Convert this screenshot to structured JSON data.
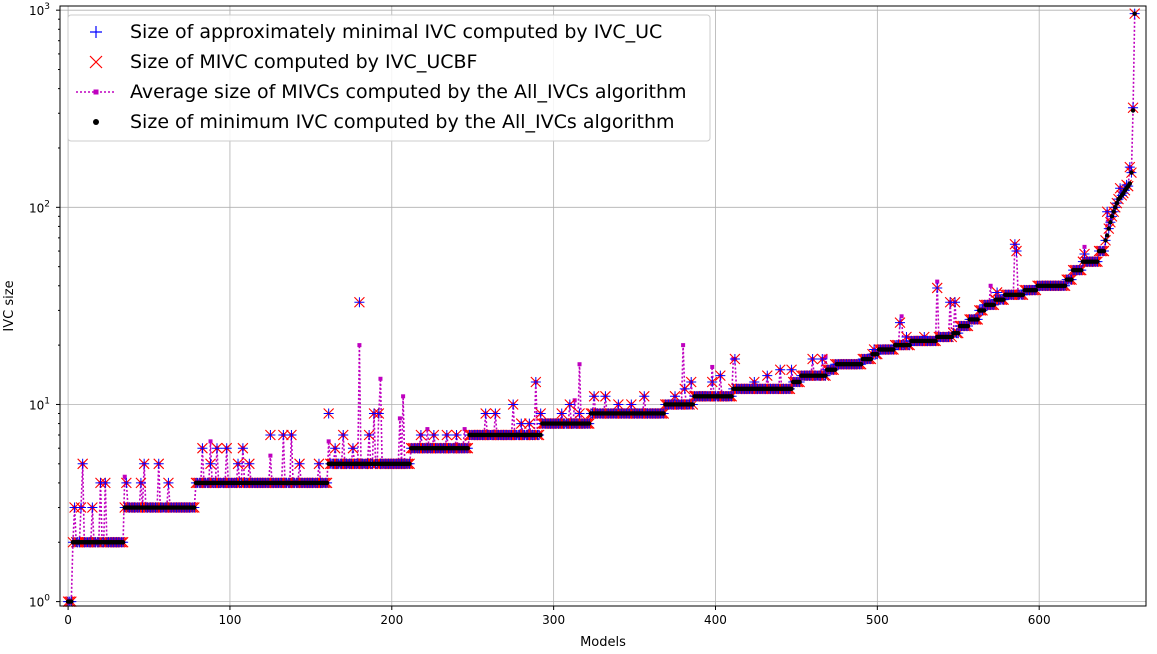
{
  "chart_data": {
    "type": "scatter",
    "xlabel": "Models",
    "ylabel": "IVC size",
    "xlim": [
      -5,
      666
    ],
    "ylim": [
      0.95,
      1050
    ],
    "yscale": "log",
    "grid": true,
    "legend_position": "top-left",
    "x_ticks": [
      "0",
      "100",
      "200",
      "300",
      "400",
      "500",
      "600"
    ],
    "y_ticks": [
      {
        "base": "10",
        "exp": "0"
      },
      {
        "base": "10",
        "exp": "1"
      },
      {
        "base": "10",
        "exp": "2"
      },
      {
        "base": "10",
        "exp": "3"
      }
    ],
    "n_models": 660,
    "series": [
      {
        "name": "Size of approximately minimal IVC computed by IVC_UC",
        "color": "#0000ff",
        "marker": "plus"
      },
      {
        "name": "Size of MIVC computed by IVC_UCBF",
        "color": "#ff0000",
        "marker": "x"
      },
      {
        "name": "Average size of MIVCs computed by the All_IVCs algorithm",
        "color": "#bf00bf",
        "marker": "square-dotted-line"
      },
      {
        "name": "Size of minimum IVC computed by the All_IVCs algorithm",
        "color": "#000000",
        "marker": "dot"
      }
    ],
    "min_ivc_steps": [
      {
        "from": 0,
        "to": 2,
        "value": 1
      },
      {
        "from": 3,
        "to": 34,
        "value": 2
      },
      {
        "from": 35,
        "to": 78,
        "value": 3
      },
      {
        "from": 79,
        "to": 160,
        "value": 4
      },
      {
        "from": 161,
        "to": 211,
        "value": 5
      },
      {
        "from": 212,
        "to": 247,
        "value": 6
      },
      {
        "from": 248,
        "to": 292,
        "value": 7
      },
      {
        "from": 293,
        "to": 322,
        "value": 8
      },
      {
        "from": 323,
        "to": 368,
        "value": 9
      },
      {
        "from": 369,
        "to": 386,
        "value": 10
      },
      {
        "from": 387,
        "to": 410,
        "value": 11
      },
      {
        "from": 411,
        "to": 447,
        "value": 12
      },
      {
        "from": 448,
        "to": 452,
        "value": 13
      },
      {
        "from": 453,
        "to": 468,
        "value": 14
      },
      {
        "from": 469,
        "to": 474,
        "value": 15
      },
      {
        "from": 475,
        "to": 490,
        "value": 16
      },
      {
        "from": 491,
        "to": 496,
        "value": 17
      },
      {
        "from": 497,
        "to": 500,
        "value": 18
      },
      {
        "from": 501,
        "to": 510,
        "value": 19
      },
      {
        "from": 511,
        "to": 520,
        "value": 20
      },
      {
        "from": 521,
        "to": 536,
        "value": 21
      },
      {
        "from": 537,
        "to": 546,
        "value": 22
      },
      {
        "from": 547,
        "to": 550,
        "value": 23
      },
      {
        "from": 551,
        "to": 556,
        "value": 25
      },
      {
        "from": 557,
        "to": 562,
        "value": 27
      },
      {
        "from": 563,
        "to": 566,
        "value": 30
      },
      {
        "from": 567,
        "to": 572,
        "value": 32
      },
      {
        "from": 573,
        "to": 578,
        "value": 34
      },
      {
        "from": 579,
        "to": 590,
        "value": 36
      },
      {
        "from": 591,
        "to": 598,
        "value": 38
      },
      {
        "from": 599,
        "to": 616,
        "value": 40
      },
      {
        "from": 617,
        "to": 620,
        "value": 43
      },
      {
        "from": 621,
        "to": 626,
        "value": 48
      },
      {
        "from": 627,
        "to": 636,
        "value": 53
      },
      {
        "from": 637,
        "to": 640,
        "value": 60
      }
    ],
    "min_ivc_tail": [
      {
        "x": 641,
        "y": 68
      },
      {
        "x": 642,
        "y": 72
      },
      {
        "x": 643,
        "y": 78
      },
      {
        "x": 644,
        "y": 84
      },
      {
        "x": 645,
        "y": 90
      },
      {
        "x": 646,
        "y": 95
      },
      {
        "x": 647,
        "y": 100
      },
      {
        "x": 648,
        "y": 105
      },
      {
        "x": 649,
        "y": 110
      },
      {
        "x": 650,
        "y": 112
      },
      {
        "x": 651,
        "y": 115
      },
      {
        "x": 652,
        "y": 118
      },
      {
        "x": 653,
        "y": 122
      },
      {
        "x": 654,
        "y": 125
      },
      {
        "x": 655,
        "y": 128
      },
      {
        "x": 656,
        "y": 132
      },
      {
        "x": 657,
        "y": 150
      },
      {
        "x": 658,
        "y": 310
      },
      {
        "x": 659,
        "y": 960
      }
    ],
    "mivc_outliers": [
      {
        "x": 1,
        "y": 1
      },
      {
        "x": 2,
        "y": 1
      },
      {
        "x": 4,
        "y": 3
      },
      {
        "x": 8,
        "y": 3
      },
      {
        "x": 9,
        "y": 5
      },
      {
        "x": 15,
        "y": 3
      },
      {
        "x": 20,
        "y": 4
      },
      {
        "x": 23,
        "y": 4
      },
      {
        "x": 36,
        "y": 4
      },
      {
        "x": 45,
        "y": 4
      },
      {
        "x": 47,
        "y": 5
      },
      {
        "x": 56,
        "y": 5
      },
      {
        "x": 62,
        "y": 4
      },
      {
        "x": 83,
        "y": 6
      },
      {
        "x": 88,
        "y": 5
      },
      {
        "x": 92,
        "y": 6
      },
      {
        "x": 98,
        "y": 6
      },
      {
        "x": 105,
        "y": 5
      },
      {
        "x": 108,
        "y": 6
      },
      {
        "x": 112,
        "y": 5
      },
      {
        "x": 125,
        "y": 7
      },
      {
        "x": 133,
        "y": 7
      },
      {
        "x": 138,
        "y": 7
      },
      {
        "x": 143,
        "y": 5
      },
      {
        "x": 155,
        "y": 5
      },
      {
        "x": 161,
        "y": 9
      },
      {
        "x": 165,
        "y": 6
      },
      {
        "x": 170,
        "y": 7
      },
      {
        "x": 176,
        "y": 6
      },
      {
        "x": 180,
        "y": 33
      },
      {
        "x": 186,
        "y": 7
      },
      {
        "x": 189,
        "y": 9
      },
      {
        "x": 192,
        "y": 9
      },
      {
        "x": 218,
        "y": 7
      },
      {
        "x": 226,
        "y": 7
      },
      {
        "x": 234,
        "y": 7
      },
      {
        "x": 240,
        "y": 7
      },
      {
        "x": 258,
        "y": 9
      },
      {
        "x": 264,
        "y": 9
      },
      {
        "x": 275,
        "y": 10
      },
      {
        "x": 280,
        "y": 8
      },
      {
        "x": 285,
        "y": 8
      },
      {
        "x": 289,
        "y": 13
      },
      {
        "x": 292,
        "y": 9
      },
      {
        "x": 305,
        "y": 9
      },
      {
        "x": 310,
        "y": 10
      },
      {
        "x": 316,
        "y": 9
      },
      {
        "x": 325,
        "y": 11
      },
      {
        "x": 332,
        "y": 11
      },
      {
        "x": 340,
        "y": 10
      },
      {
        "x": 348,
        "y": 10
      },
      {
        "x": 356,
        "y": 11
      },
      {
        "x": 375,
        "y": 11
      },
      {
        "x": 381,
        "y": 12
      },
      {
        "x": 385,
        "y": 13
      },
      {
        "x": 398,
        "y": 13
      },
      {
        "x": 403,
        "y": 14
      },
      {
        "x": 412,
        "y": 17
      },
      {
        "x": 424,
        "y": 13
      },
      {
        "x": 432,
        "y": 14
      },
      {
        "x": 440,
        "y": 15
      },
      {
        "x": 447,
        "y": 15
      },
      {
        "x": 460,
        "y": 17
      },
      {
        "x": 466,
        "y": 17
      },
      {
        "x": 474,
        "y": 16
      },
      {
        "x": 498,
        "y": 19
      },
      {
        "x": 514,
        "y": 26
      },
      {
        "x": 518,
        "y": 22
      },
      {
        "x": 529,
        "y": 22
      },
      {
        "x": 537,
        "y": 39
      },
      {
        "x": 545,
        "y": 33
      },
      {
        "x": 548,
        "y": 33
      },
      {
        "x": 566,
        "y": 32
      },
      {
        "x": 574,
        "y": 37
      },
      {
        "x": 585,
        "y": 65
      },
      {
        "x": 586,
        "y": 60
      },
      {
        "x": 628,
        "y": 58
      },
      {
        "x": 642,
        "y": 95
      },
      {
        "x": 650,
        "y": 125
      },
      {
        "x": 654,
        "y": 130
      },
      {
        "x": 656,
        "y": 160
      },
      {
        "x": 658,
        "y": 320
      },
      {
        "x": 659,
        "y": 960
      }
    ],
    "avg_spikes": [
      {
        "x": 5,
        "y": 2
      },
      {
        "x": 35,
        "y": 4.3
      },
      {
        "x": 88,
        "y": 6.5
      },
      {
        "x": 125,
        "y": 5.5
      },
      {
        "x": 161,
        "y": 6.5
      },
      {
        "x": 180,
        "y": 20
      },
      {
        "x": 193,
        "y": 13.5
      },
      {
        "x": 205,
        "y": 8.5
      },
      {
        "x": 207,
        "y": 11
      },
      {
        "x": 222,
        "y": 7.5
      },
      {
        "x": 245,
        "y": 7.5
      },
      {
        "x": 313,
        "y": 10.5
      },
      {
        "x": 316,
        "y": 16
      },
      {
        "x": 380,
        "y": 20
      },
      {
        "x": 398,
        "y": 15.5
      },
      {
        "x": 411,
        "y": 17
      },
      {
        "x": 468,
        "y": 17.5
      },
      {
        "x": 515,
        "y": 28
      },
      {
        "x": 537,
        "y": 42
      },
      {
        "x": 570,
        "y": 40
      },
      {
        "x": 586,
        "y": 60
      },
      {
        "x": 628,
        "y": 63
      }
    ]
  }
}
